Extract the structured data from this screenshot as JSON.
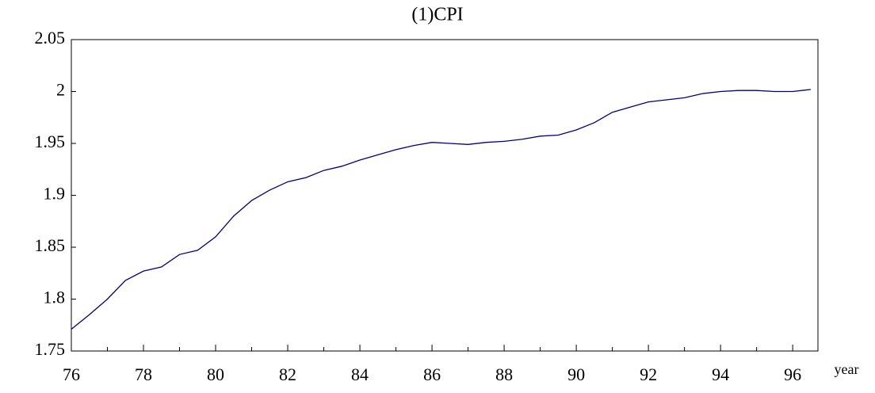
{
  "chart_data": {
    "type": "line",
    "title": "(1)CPI",
    "x_label": "year",
    "x": [
      76,
      76.5,
      77,
      77.5,
      78,
      78.5,
      79,
      79.5,
      80,
      80.5,
      81,
      81.5,
      82,
      82.5,
      83,
      83.5,
      84,
      84.5,
      85,
      85.5,
      86,
      86.5,
      87,
      87.5,
      88,
      88.5,
      89,
      89.5,
      90,
      90.5,
      91,
      91.5,
      92,
      92.5,
      93,
      93.5,
      94,
      94.5,
      95,
      95.5,
      96,
      96.5
    ],
    "series": [
      {
        "color": "#000080",
        "values": [
          1.771,
          1.785,
          1.8,
          1.818,
          1.827,
          1.831,
          1.843,
          1.847,
          1.86,
          1.88,
          1.895,
          1.905,
          1.913,
          1.917,
          1.924,
          1.928,
          1.934,
          1.939,
          1.944,
          1.948,
          1.951,
          1.95,
          1.949,
          1.951,
          1.952,
          1.954,
          1.957,
          1.958,
          1.963,
          1.97,
          1.98,
          1.985,
          1.99,
          1.992,
          1.994,
          1.998,
          2,
          2.001,
          2.001,
          2,
          2,
          2.002
        ]
      }
    ],
    "xlim": [
      76,
      96.7
    ],
    "xticks": [
      76,
      78,
      80,
      82,
      84,
      86,
      88,
      90,
      92,
      94,
      96
    ],
    "ylim": [
      1.75,
      2.05
    ],
    "yticks": [
      1.75,
      1.8,
      1.85,
      1.9,
      1.95,
      2,
      2.05
    ],
    "grid": false
  }
}
